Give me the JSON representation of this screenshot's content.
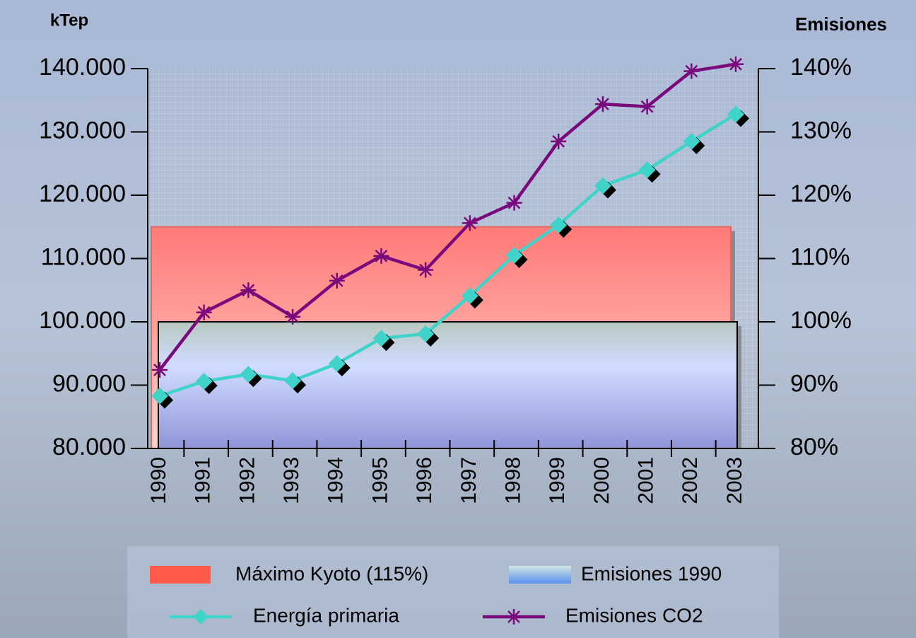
{
  "chart_data": {
    "type": "line",
    "y_title": "kTep",
    "y2_title": "Emisiones",
    "categories": [
      "1990",
      "1991",
      "1992",
      "1993",
      "1994",
      "1995",
      "1996",
      "1997",
      "1998",
      "1999",
      "2000",
      "2001",
      "2002",
      "2003"
    ],
    "ylim": [
      80000,
      140000
    ],
    "yticks": [
      {
        "value": 80000,
        "label": "80.000"
      },
      {
        "value": 90000,
        "label": "90.000"
      },
      {
        "value": 100000,
        "label": "100.000"
      },
      {
        "value": 110000,
        "label": "110.000"
      },
      {
        "value": 120000,
        "label": "120.000"
      },
      {
        "value": 130000,
        "label": "130.000"
      },
      {
        "value": 140000,
        "label": "140.000"
      }
    ],
    "y2lim": [
      80,
      140
    ],
    "y2ticks": [
      {
        "value": 80,
        "label": "80%"
      },
      {
        "value": 90,
        "label": "90%"
      },
      {
        "value": 100,
        "label": "100%"
      },
      {
        "value": 110,
        "label": "110%"
      },
      {
        "value": 120,
        "label": "120%"
      },
      {
        "value": 130,
        "label": "130%"
      },
      {
        "value": 140,
        "label": "140%"
      }
    ],
    "grid": true,
    "bands": [
      {
        "name": "Máximo Kyoto (115%)",
        "color": "#ff5a4a",
        "value": 115,
        "axis": "y2"
      },
      {
        "name": "Emisiones 1990",
        "color": "#6f8ee8",
        "value": 100,
        "axis": "y2"
      }
    ],
    "series": [
      {
        "name": "Energía primaria",
        "color": "#3fd3c9",
        "marker": "diamond",
        "values": [
          88300,
          90600,
          91700,
          90700,
          93400,
          97400,
          98100,
          104100,
          110500,
          115300,
          121500,
          124000,
          128500,
          132800
        ]
      },
      {
        "name": "Emisiones CO2",
        "color": "#7a0a7c",
        "marker": "star",
        "axis": "y2",
        "values": [
          92.4,
          101.5,
          105.0,
          100.8,
          106.5,
          110.4,
          108.2,
          115.6,
          118.8,
          128.5,
          134.4,
          134.0,
          139.6,
          140.7
        ]
      }
    ]
  }
}
